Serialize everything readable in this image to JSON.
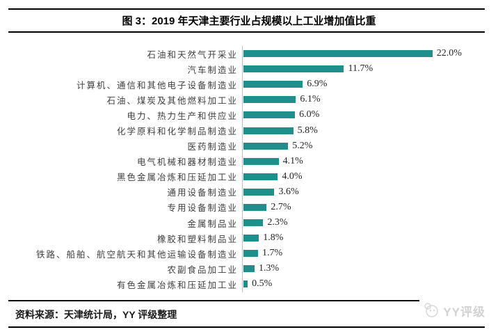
{
  "header": {
    "title": "图 3：2019 年天津主要行业占规模以上工业增加值比重"
  },
  "footer": {
    "source": "资料来源：天津统计局，YY 评级整理",
    "watermark": "YY评级"
  },
  "colors": {
    "bar": "#1f8f8c",
    "axis": "#bfbfbf",
    "watermark": "#d2d2d2"
  },
  "chart_data": {
    "type": "bar",
    "orientation": "horizontal",
    "title": "2019 年天津主要行业占规模以上工业增加值比重",
    "xlabel": "",
    "ylabel": "",
    "unit": "%",
    "xlim": [
      0,
      24
    ],
    "grid": false,
    "legend": false,
    "categories": [
      "石油和天然气开采业",
      "汽车制造业",
      "计算机、通信和其他电子设备制造业",
      "石油、煤炭及其他燃料加工业",
      "电力、热力生产和供应业",
      "化学原料和化学制品制造业",
      "医药制造业",
      "电气机械和器材制造业",
      "黑色金属冶炼和压延加工业",
      "通用设备制造业",
      "专用设备制造业",
      "金属制品业",
      "橡胶和塑料制品业",
      "铁路、船舶、航空航天和其他运输设备制造业",
      "农副食品加工业",
      "有色金属冶炼和压延加工业"
    ],
    "values": [
      22.0,
      11.7,
      6.9,
      6.1,
      6.0,
      5.8,
      5.2,
      4.1,
      4.0,
      3.6,
      2.7,
      2.3,
      1.8,
      1.7,
      1.3,
      0.5
    ],
    "value_labels": [
      "22.0%",
      "11.7%",
      "6.9%",
      "6.1%",
      "6.0%",
      "5.8%",
      "5.2%",
      "4.1%",
      "4.0%",
      "3.6%",
      "2.7%",
      "2.3%",
      "1.8%",
      "1.7%",
      "1.3%",
      "0.5%"
    ]
  }
}
